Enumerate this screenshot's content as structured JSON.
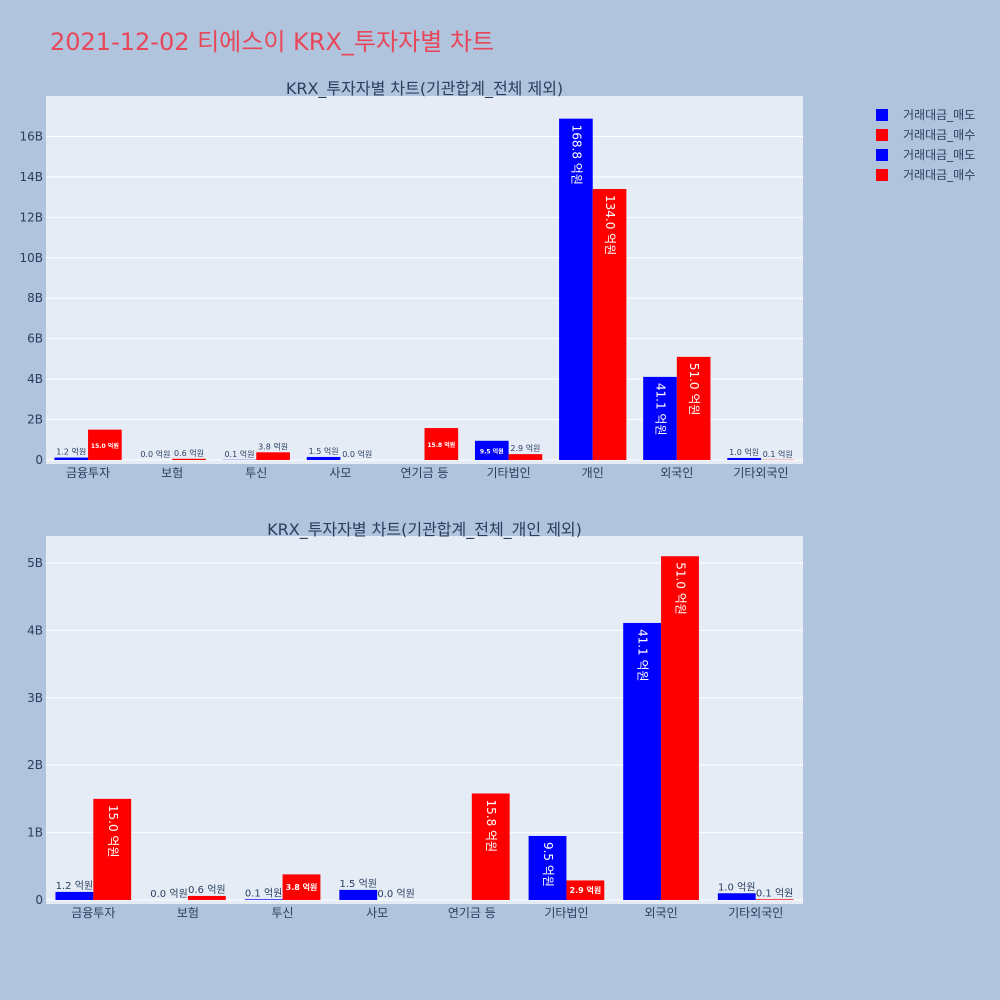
{
  "title": "2021-12-02 티에스이 KRX_투자자별 차트",
  "colors": {
    "sell": "#0000ff",
    "buy": "#ff0000",
    "plot_bg": "#e5ecf6",
    "page_bg": "#b0c4de",
    "title": "#e8475a"
  },
  "legend": [
    {
      "name": "거래대금_매도",
      "color": "#0000ff"
    },
    {
      "name": "거래대금_매수",
      "color": "#ff0000"
    },
    {
      "name": "거래대금_매도",
      "color": "#0000ff"
    },
    {
      "name": "거래대금_매수",
      "color": "#ff0000"
    }
  ],
  "chart_data": [
    {
      "type": "bar",
      "title": "KRX_투자자별 차트(기관합계_전체 제외)",
      "categories": [
        "금융투자",
        "보험",
        "투신",
        "사모",
        "연기금 등",
        "기타법인",
        "개인",
        "외국인",
        "기타외국인"
      ],
      "y_tick_labels": [
        "0",
        "2B",
        "4B",
        "6B",
        "8B",
        "10B",
        "12B",
        "14B",
        "16B"
      ],
      "ylim": [
        0,
        18000000000
      ],
      "grid": true,
      "legend_position": "top-right",
      "series": [
        {
          "name": "거래대금_매도",
          "values": [
            120000000,
            0,
            10000000,
            150000000,
            0,
            950000000,
            16880000000,
            4110000000,
            100000000
          ],
          "labels": [
            "1.2 억원",
            "0.0 억원",
            "0.1 억원",
            "1.5 억원",
            "",
            "9.5 억원",
            "168.8 억원",
            "41.1 억원",
            "1.0 억원"
          ]
        },
        {
          "name": "거래대금_매수",
          "values": [
            1500000000,
            60000000,
            380000000,
            0,
            1580000000,
            290000000,
            13400000000,
            5100000000,
            10000000
          ],
          "labels": [
            "15.0 억원",
            "0.6 억원",
            "3.8 억원",
            "0.0 억원",
            "15.8 억원",
            "2.9 억원",
            "134.0 억원",
            "51.0 억원",
            "0.1 억원"
          ]
        }
      ]
    },
    {
      "type": "bar",
      "title": "KRX_투자자별 차트(기관합계_전체_개인 제외)",
      "categories": [
        "금융투자",
        "보험",
        "투신",
        "사모",
        "연기금 등",
        "기타법인",
        "외국인",
        "기타외국인"
      ],
      "y_tick_labels": [
        "0",
        "1B",
        "2B",
        "3B",
        "4B",
        "5B"
      ],
      "ylim": [
        0,
        5400000000
      ],
      "grid": true,
      "legend_position": "top-right",
      "series": [
        {
          "name": "거래대금_매도",
          "values": [
            120000000,
            0,
            10000000,
            150000000,
            0,
            950000000,
            4110000000,
            100000000
          ],
          "labels": [
            "1.2 억원",
            "0.0 억원",
            "0.1 억원",
            "1.5 억원",
            "",
            "9.5 억원",
            "41.1 억원",
            "1.0 억원"
          ]
        },
        {
          "name": "거래대금_매수",
          "values": [
            1500000000,
            60000000,
            380000000,
            0,
            1580000000,
            290000000,
            5100000000,
            10000000
          ],
          "labels": [
            "15.0 억원",
            "0.6 억원",
            "3.8 억원",
            "0.0 억원",
            "15.8 억원",
            "2.9 억원",
            "51.0 억원",
            "0.1 억원"
          ]
        }
      ]
    }
  ]
}
